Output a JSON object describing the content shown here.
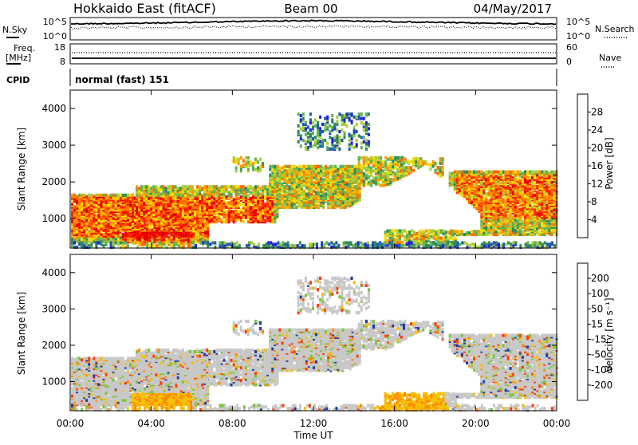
{
  "header": {
    "station": "Hokkaido East (fitACF)",
    "beam": "Beam 00",
    "date": "04/May/2017"
  },
  "param_panel": {
    "nsky_label": "N.Sky",
    "nsky_ticks": [
      "10^5",
      "10^0"
    ],
    "nsearch_label": "N.Search",
    "nsearch_ticks": [
      "10^5",
      "10^0"
    ],
    "freq_label_1": "Freq.",
    "freq_label_2": "[MHz]",
    "freq_ticks": [
      "18",
      "8"
    ],
    "nave_label": "Nave",
    "nave_ticks": [
      "60",
      "0"
    ],
    "cpid_label": "CPID",
    "cpid_text": "normal (fast) 151"
  },
  "colors": {
    "power_scale": [
      "#1f1fe8",
      "#1c5bab",
      "#2e8b57",
      "#5fb157",
      "#a8cf3c",
      "#f5dc00",
      "#ff9a00",
      "#ff6a00",
      "#ff2a00",
      "#e80000"
    ],
    "velocity_scale": [
      "#1e3aa0",
      "#2f7d57",
      "#79c63a",
      "#c8c8c8",
      "#c8c8c8",
      "#f5c000",
      "#ff8a00",
      "#ff3a00"
    ]
  },
  "chart_data": [
    {
      "type": "heatmap",
      "name": "power",
      "ylabel": "Slant Range [km]",
      "ylim": [
        200,
        4500
      ],
      "xlim_hours": [
        0,
        24
      ],
      "y_ticks": [
        "1000",
        "2000",
        "3000",
        "4000"
      ],
      "colorbar_label": "Power [dB]",
      "colorbar_ticks": [
        "4",
        "8",
        "12",
        "16",
        "20",
        "24",
        "28"
      ],
      "colorbar_range": [
        0,
        30
      ]
    },
    {
      "type": "heatmap",
      "name": "velocity",
      "ylabel": "Slant Range [km]",
      "ylim": [
        200,
        4500
      ],
      "xlim_hours": [
        0,
        24
      ],
      "y_ticks": [
        "1000",
        "2000",
        "3000",
        "4000"
      ],
      "colorbar_label": "Velocity [m s⁻¹]",
      "colorbar_ticks": [
        "200",
        "100",
        "50",
        "15",
        "-15",
        "-50",
        "-100",
        "-200"
      ]
    }
  ],
  "x_axis": {
    "ticks": [
      "00:00",
      "04:00",
      "08:00",
      "12:00",
      "16:00",
      "20:00",
      "00:00"
    ],
    "label": "Time UT"
  }
}
